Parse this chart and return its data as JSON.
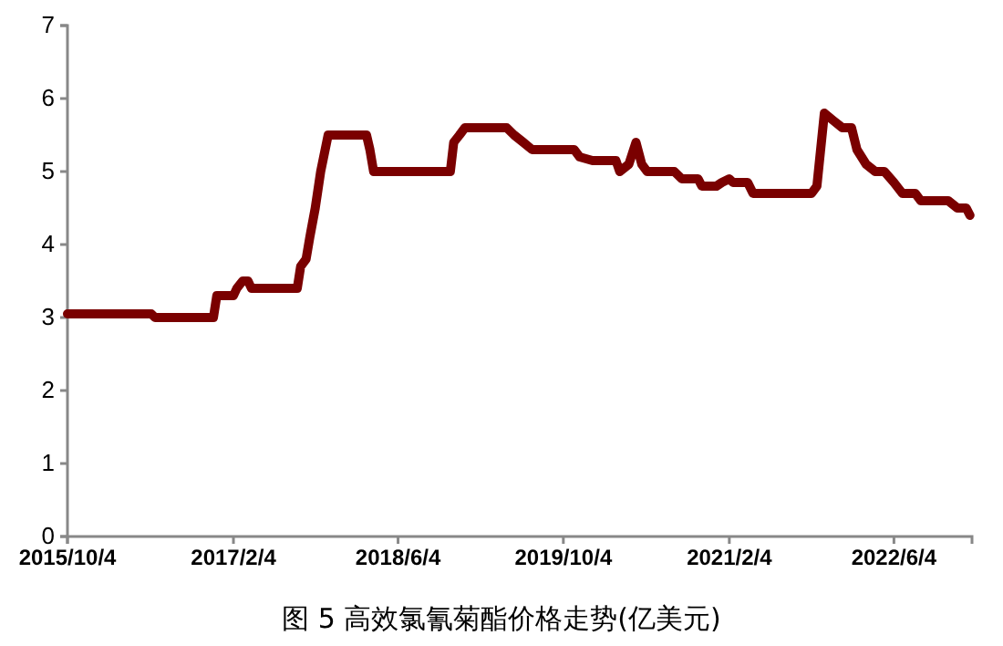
{
  "chart_data": {
    "type": "line",
    "title": "图 5  高效氯氰菊酯价格走势(亿美元)",
    "x": [
      "2015-10-04",
      "2016-06-07",
      "2016-06-18",
      "2016-12-07",
      "2016-12-17",
      "2017-02-04",
      "2017-02-14",
      "2017-03-03",
      "2017-03-19",
      "2017-03-29",
      "2017-08-11",
      "2017-08-21",
      "2017-09-06",
      "2017-09-17",
      "2017-10-03",
      "2017-10-19",
      "2017-11-10",
      "2018-03-03",
      "2018-03-13",
      "2018-03-24",
      "2018-11-05",
      "2018-11-15",
      "2018-12-02",
      "2018-12-18",
      "2019-04-20",
      "2019-05-12",
      "2019-06-08",
      "2019-07-04",
      "2019-11-05",
      "2019-11-21",
      "2019-12-29",
      "2020-03-07",
      "2020-03-18",
      "2020-04-14",
      "2020-05-05",
      "2020-05-22",
      "2020-06-07",
      "2020-08-26",
      "2020-09-17",
      "2020-11-04",
      "2020-11-15",
      "2020-12-28",
      "2021-01-13",
      "2021-02-04",
      "2021-02-15",
      "2021-03-30",
      "2021-04-15",
      "2021-10-04",
      "2021-10-20",
      "2021-11-11",
      "2021-12-07",
      "2022-01-03",
      "2022-01-30",
      "2022-02-15",
      "2022-03-14",
      "2022-04-10",
      "2022-05-07",
      "2022-06-04",
      "2022-06-29",
      "2022-08-06",
      "2022-08-22",
      "2022-11-11",
      "2022-12-08",
      "2023-01-03",
      "2023-01-14"
    ],
    "series": [
      {
        "color": "#7a0000",
        "values": [
          3.05,
          3.05,
          3.0,
          3.0,
          3.3,
          3.3,
          3.4,
          3.5,
          3.5,
          3.4,
          3.4,
          3.7,
          3.8,
          4.1,
          4.5,
          5.0,
          5.5,
          5.5,
          5.3,
          5.0,
          5.0,
          5.4,
          5.5,
          5.6,
          5.6,
          5.5,
          5.4,
          5.3,
          5.3,
          5.2,
          5.15,
          5.15,
          5.0,
          5.1,
          5.4,
          5.1,
          5.0,
          5.0,
          4.9,
          4.9,
          4.8,
          4.8,
          4.85,
          4.9,
          4.85,
          4.85,
          4.7,
          4.7,
          4.8,
          5.8,
          5.7,
          5.6,
          5.6,
          5.3,
          5.1,
          5.0,
          5.0,
          4.85,
          4.7,
          4.7,
          4.6,
          4.6,
          4.5,
          4.5,
          4.4
        ]
      }
    ],
    "xlim": [
      "2015-10-04",
      "2023-01-20"
    ],
    "xticks": [
      {
        "value": "2015-10-04",
        "label": "2015/10/4"
      },
      {
        "value": "2017-02-04",
        "label": "2017/2/4"
      },
      {
        "value": "2018-06-04",
        "label": "2018/6/4"
      },
      {
        "value": "2019-10-04",
        "label": "2019/10/4"
      },
      {
        "value": "2021-02-04",
        "label": "2021/2/4"
      },
      {
        "value": "2022-06-04",
        "label": "2022/6/4"
      }
    ],
    "ylim": [
      0,
      7
    ],
    "yticks": [
      0,
      1,
      2,
      3,
      4,
      5,
      6,
      7
    ],
    "grid": false,
    "line_style": "solid",
    "marker": "none"
  }
}
